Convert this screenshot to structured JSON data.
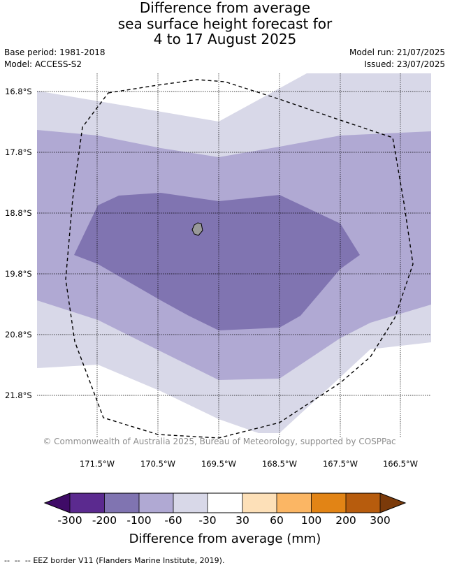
{
  "title": {
    "line1": "Difference from average",
    "line2": "sea surface height forecast for",
    "line3": "4 to 17 August 2025"
  },
  "meta": {
    "base_period": "Base period: 1981-2018",
    "model": "Model: ACCESS-S2",
    "model_run": "Model run: 21/07/2025",
    "issued": "Issued: 23/07/2025"
  },
  "map": {
    "latitude_labels": [
      "16.8°S",
      "17.8°S",
      "18.8°S",
      "19.8°S",
      "20.8°S",
      "21.8°S"
    ],
    "longitude_labels": [
      "171.5°W",
      "170.5°W",
      "169.5°W",
      "168.5°W",
      "167.5°W",
      "166.5°W"
    ],
    "copyright": "© Commonwealth of Australia 2025, Bureau of Meteorology, supported by COSPPac",
    "zone_colors": {
      "weak_negative": "#d8d8e8",
      "moderate_negative": "#b0a9d3",
      "strong_negative": "#8074b1",
      "land": "#999999"
    }
  },
  "colorbar": {
    "tick_labels": [
      "-300",
      "-200",
      "-100",
      "-60",
      "-30",
      "30",
      "60",
      "100",
      "200",
      "300"
    ],
    "colors": [
      "#3f0b67",
      "#5b2a8f",
      "#8074b1",
      "#b0a9d3",
      "#d8d8e8",
      "#ffffff",
      "#fde0b8",
      "#fbb664",
      "#e28415",
      "#b75c0d",
      "#7b3a0a"
    ],
    "title": "Difference from average (mm)"
  },
  "legend": {
    "eez_border": "EEZ border V11 (Flanders Marine Institute, 2019)."
  }
}
